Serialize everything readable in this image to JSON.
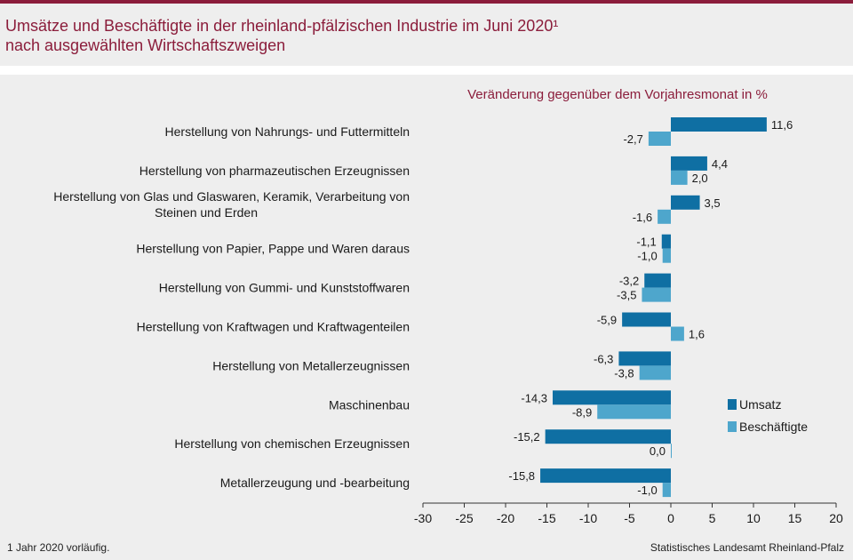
{
  "header": {
    "title_line1": "Umsätze und Beschäftigte in der rheinland-pfälzischen Industrie im Juni 2020¹",
    "title_line2": "nach ausgewählten Wirtschaftszweigen"
  },
  "footer": {
    "footnote": "1 Jahr 2020 vorläufig.",
    "source": "Statistisches Landesamt Rheinland-Pfalz"
  },
  "colors": {
    "umsatz": "#0f6fa3",
    "beschaeftigte": "#4ea6cc",
    "accent": "#8b1d3b"
  },
  "chart_data": {
    "type": "bar",
    "orientation": "horizontal",
    "axis_title": "Veränderung gegenüber dem Vorjahresmonat in %",
    "xlim": [
      -30,
      20
    ],
    "xticks": [
      -30,
      -25,
      -20,
      -15,
      -10,
      -5,
      0,
      5,
      10,
      15,
      20
    ],
    "grid": false,
    "legend_position": "right",
    "categories": [
      [
        "Herstellung von Nahrungs- und Futtermitteln"
      ],
      [
        "Herstellung von pharmazeutischen Erzeugnissen"
      ],
      [
        "Herstellung von Glas und Glaswaren, Keramik, Verarbeitung von",
        "Steinen und Erden"
      ],
      [
        "Herstellung von Papier, Pappe und Waren daraus"
      ],
      [
        "Herstellung von Gummi- und Kunststoffwaren"
      ],
      [
        "Herstellung von Kraftwagen und Kraftwagenteilen"
      ],
      [
        "Herstellung von Metallerzeugnissen"
      ],
      [
        "Maschinenbau"
      ],
      [
        "Herstellung von chemischen Erzeugnissen"
      ],
      [
        "Metallerzeugung und -bearbeitung"
      ]
    ],
    "series": [
      {
        "name": "Umsatz",
        "values": [
          11.6,
          4.4,
          3.5,
          -1.1,
          -3.2,
          -5.9,
          -6.3,
          -14.3,
          -15.2,
          -15.8
        ]
      },
      {
        "name": "Beschäftigte",
        "values": [
          -2.7,
          2.0,
          -1.6,
          -1.0,
          -3.5,
          1.6,
          -3.8,
          -8.9,
          0.0,
          -1.0
        ]
      }
    ]
  }
}
